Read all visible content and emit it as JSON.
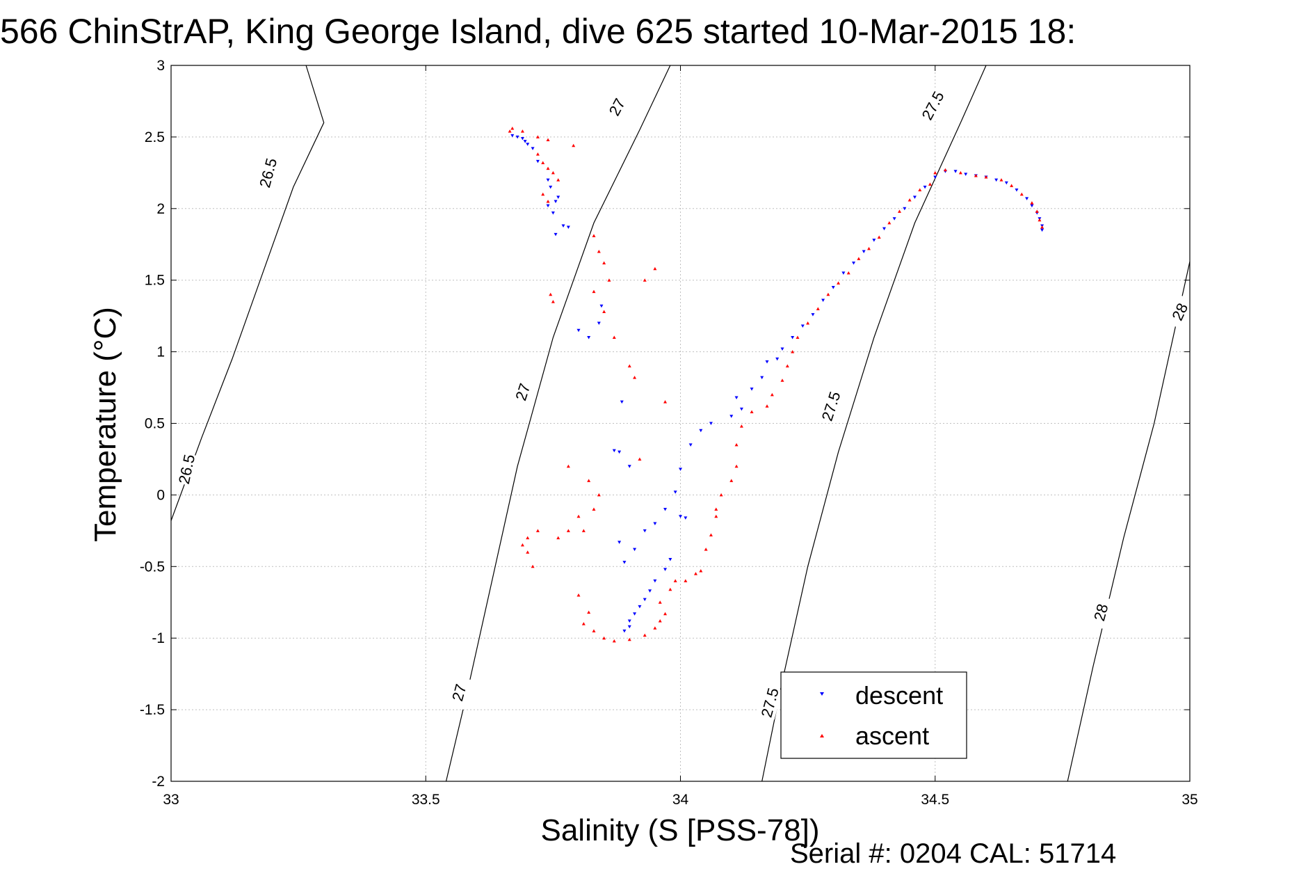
{
  "title": "566 ChinStrAP, King George Island, dive 625 started 10-Mar-2015 18:",
  "footer": "Serial #: 0204  CAL: 51714",
  "colors": {
    "descent": "#0000ff",
    "ascent": "#ff0000",
    "grid": "#bfbfbf",
    "contour": "#000000"
  },
  "chart_data": {
    "type": "scatter",
    "xlabel": "Salinity (S [PSS-78])",
    "ylabel": "Temperature (°C)",
    "xlim": [
      33,
      35
    ],
    "ylim": [
      -2,
      3
    ],
    "xticks": [
      33,
      33.5,
      34,
      34.5,
      35
    ],
    "xtick_labels": [
      "33",
      "33.5",
      "34",
      "34.5",
      "35"
    ],
    "yticks": [
      -2,
      -1.5,
      -1,
      -0.5,
      0,
      0.5,
      1,
      1.5,
      2,
      2.5,
      3
    ],
    "ytick_labels": [
      "-2",
      "-1.5",
      "-1",
      "-0.5",
      "0",
      "0.5",
      "1",
      "1.5",
      "2",
      "2.5",
      "3"
    ],
    "grid": true,
    "legend": {
      "placement": "bottom-right",
      "entries": [
        "descent",
        "ascent"
      ]
    },
    "contours": [
      {
        "label": "26.5",
        "points": [
          [
            33.0,
            -0.18
          ],
          [
            33.06,
            0.4
          ],
          [
            33.12,
            0.95
          ],
          [
            33.18,
            1.55
          ],
          [
            33.24,
            2.15
          ],
          [
            33.3,
            2.6
          ],
          [
            33.265,
            3.0
          ]
        ]
      },
      {
        "label": "27",
        "points": [
          [
            33.54,
            -2.0
          ],
          [
            33.58,
            -1.4
          ],
          [
            33.63,
            -0.6
          ],
          [
            33.68,
            0.2
          ],
          [
            33.75,
            1.1
          ],
          [
            33.83,
            1.9
          ],
          [
            33.92,
            2.55
          ],
          [
            33.98,
            3.0
          ]
        ]
      },
      {
        "label": "27.5",
        "points": [
          [
            34.16,
            -2.0
          ],
          [
            34.2,
            -1.3
          ],
          [
            34.25,
            -0.5
          ],
          [
            34.31,
            0.3
          ],
          [
            34.38,
            1.1
          ],
          [
            34.46,
            1.9
          ],
          [
            34.55,
            2.6
          ],
          [
            34.6,
            3.0
          ]
        ]
      },
      {
        "label": "28",
        "points": [
          [
            34.76,
            -2.0
          ],
          [
            34.81,
            -1.2
          ],
          [
            34.87,
            -0.3
          ],
          [
            34.93,
            0.5
          ],
          [
            35.0,
            1.63
          ]
        ]
      }
    ],
    "contour_labels": [
      {
        "text": "26.5",
        "at": [
          33.19,
          2.25
        ],
        "angle": -75
      },
      {
        "text": "26.5",
        "at": [
          33.03,
          0.18
        ],
        "angle": -78
      },
      {
        "text": "27",
        "at": [
          33.875,
          2.71
        ],
        "angle": -62
      },
      {
        "text": "27",
        "at": [
          33.69,
          0.72
        ],
        "angle": -72
      },
      {
        "text": "27",
        "at": [
          33.565,
          -1.38
        ],
        "angle": -75
      },
      {
        "text": "27.5",
        "at": [
          34.495,
          2.72
        ],
        "angle": -62
      },
      {
        "text": "27.5",
        "at": [
          34.295,
          0.62
        ],
        "angle": -72
      },
      {
        "text": "27.5",
        "at": [
          34.175,
          -1.45
        ],
        "angle": -75
      },
      {
        "text": "28",
        "at": [
          34.98,
          1.28
        ],
        "angle": -65
      },
      {
        "text": "28",
        "at": [
          34.825,
          -0.82
        ],
        "angle": -75
      }
    ],
    "series": [
      {
        "name": "descent",
        "marker": "triangle-down",
        "points": [
          [
            33.67,
            2.51
          ],
          [
            33.68,
            2.5
          ],
          [
            33.69,
            2.49
          ],
          [
            33.695,
            2.47
          ],
          [
            33.7,
            2.45
          ],
          [
            33.71,
            2.42
          ],
          [
            33.72,
            2.33
          ],
          [
            33.74,
            2.2
          ],
          [
            33.745,
            2.15
          ],
          [
            33.76,
            2.08
          ],
          [
            33.755,
            2.05
          ],
          [
            33.74,
            2.02
          ],
          [
            33.75,
            1.97
          ],
          [
            33.755,
            1.82
          ],
          [
            33.77,
            1.88
          ],
          [
            33.78,
            1.87
          ],
          [
            33.8,
            1.15
          ],
          [
            33.82,
            1.1
          ],
          [
            33.84,
            1.2
          ],
          [
            33.845,
            1.32
          ],
          [
            33.885,
            0.65
          ],
          [
            33.88,
            0.3
          ],
          [
            33.87,
            0.31
          ],
          [
            33.9,
            0.2
          ],
          [
            33.88,
            -0.33
          ],
          [
            33.89,
            -0.47
          ],
          [
            33.91,
            -0.38
          ],
          [
            33.93,
            -0.25
          ],
          [
            33.95,
            -0.2
          ],
          [
            33.97,
            -0.1
          ],
          [
            33.99,
            0.02
          ],
          [
            34.0,
            0.18
          ],
          [
            34.02,
            0.35
          ],
          [
            34.04,
            0.45
          ],
          [
            34.06,
            0.5
          ],
          [
            34.1,
            0.55
          ],
          [
            34.12,
            0.6
          ],
          [
            34.11,
            0.68
          ],
          [
            34.14,
            0.74
          ],
          [
            34.16,
            0.82
          ],
          [
            34.17,
            0.93
          ],
          [
            34.19,
            0.95
          ],
          [
            34.2,
            1.02
          ],
          [
            34.22,
            1.1
          ],
          [
            34.24,
            1.18
          ],
          [
            34.26,
            1.26
          ],
          [
            34.28,
            1.36
          ],
          [
            34.3,
            1.45
          ],
          [
            34.32,
            1.55
          ],
          [
            34.34,
            1.62
          ],
          [
            34.36,
            1.7
          ],
          [
            34.38,
            1.78
          ],
          [
            34.4,
            1.86
          ],
          [
            34.42,
            1.93
          ],
          [
            34.44,
            2.0
          ],
          [
            34.46,
            2.08
          ],
          [
            34.48,
            2.15
          ],
          [
            34.5,
            2.22
          ],
          [
            34.52,
            2.26
          ],
          [
            34.54,
            2.26
          ],
          [
            34.56,
            2.24
          ],
          [
            34.58,
            2.23
          ],
          [
            34.6,
            2.22
          ],
          [
            34.62,
            2.2
          ],
          [
            34.64,
            2.18
          ],
          [
            34.66,
            2.13
          ],
          [
            34.68,
            2.07
          ],
          [
            34.69,
            2.02
          ],
          [
            34.7,
            1.97
          ],
          [
            34.705,
            1.93
          ],
          [
            34.71,
            1.88
          ],
          [
            34.71,
            1.85
          ],
          [
            33.89,
            -0.95
          ],
          [
            33.9,
            -0.92
          ],
          [
            33.9,
            -0.88
          ],
          [
            33.91,
            -0.83
          ],
          [
            33.92,
            -0.78
          ],
          [
            33.93,
            -0.73
          ],
          [
            33.94,
            -0.67
          ],
          [
            33.95,
            -0.6
          ],
          [
            33.97,
            -0.52
          ],
          [
            33.98,
            -0.45
          ],
          [
            34.0,
            -0.15
          ],
          [
            34.01,
            -0.16
          ]
        ]
      },
      {
        "name": "ascent",
        "marker": "triangle-up",
        "points": [
          [
            33.665,
            2.54
          ],
          [
            33.67,
            2.56
          ],
          [
            33.69,
            2.54
          ],
          [
            33.72,
            2.5
          ],
          [
            33.74,
            2.48
          ],
          [
            33.72,
            2.38
          ],
          [
            33.73,
            2.32
          ],
          [
            33.74,
            2.28
          ],
          [
            33.75,
            2.25
          ],
          [
            33.76,
            2.2
          ],
          [
            33.73,
            2.1
          ],
          [
            33.74,
            2.05
          ],
          [
            33.79,
            2.44
          ],
          [
            33.745,
            1.4
          ],
          [
            33.75,
            1.35
          ],
          [
            33.83,
            1.81
          ],
          [
            33.84,
            1.7
          ],
          [
            33.85,
            1.62
          ],
          [
            33.95,
            1.58
          ],
          [
            33.93,
            1.5
          ],
          [
            33.86,
            1.5
          ],
          [
            33.83,
            1.42
          ],
          [
            33.85,
            1.28
          ],
          [
            33.87,
            1.1
          ],
          [
            33.9,
            0.9
          ],
          [
            33.91,
            0.82
          ],
          [
            33.97,
            0.65
          ],
          [
            33.92,
            0.25
          ],
          [
            33.78,
            0.2
          ],
          [
            33.82,
            0.1
          ],
          [
            33.84,
            0.0
          ],
          [
            33.83,
            -0.1
          ],
          [
            33.8,
            -0.15
          ],
          [
            33.81,
            -0.25
          ],
          [
            33.78,
            -0.25
          ],
          [
            33.76,
            -0.3
          ],
          [
            33.72,
            -0.25
          ],
          [
            33.7,
            -0.3
          ],
          [
            33.69,
            -0.35
          ],
          [
            33.7,
            -0.4
          ],
          [
            33.71,
            -0.5
          ],
          [
            33.8,
            -0.7
          ],
          [
            33.82,
            -0.82
          ],
          [
            33.81,
            -0.9
          ],
          [
            33.83,
            -0.95
          ],
          [
            33.85,
            -1.0
          ],
          [
            33.87,
            -1.02
          ],
          [
            33.9,
            -1.01
          ],
          [
            33.93,
            -0.98
          ],
          [
            33.95,
            -0.93
          ],
          [
            33.96,
            -0.88
          ],
          [
            33.97,
            -0.83
          ],
          [
            33.96,
            -0.75
          ],
          [
            33.98,
            -0.66
          ],
          [
            33.99,
            -0.6
          ],
          [
            34.01,
            -0.6
          ],
          [
            34.03,
            -0.55
          ],
          [
            34.04,
            -0.53
          ],
          [
            34.05,
            -0.38
          ],
          [
            34.06,
            -0.28
          ],
          [
            34.07,
            -0.15
          ],
          [
            34.07,
            -0.1
          ],
          [
            34.08,
            0.0
          ],
          [
            34.1,
            0.1
          ],
          [
            34.11,
            0.2
          ],
          [
            34.11,
            0.35
          ],
          [
            34.12,
            0.48
          ],
          [
            34.14,
            0.58
          ],
          [
            34.17,
            0.62
          ],
          [
            34.18,
            0.7
          ],
          [
            34.2,
            0.8
          ],
          [
            34.21,
            0.9
          ],
          [
            34.22,
            1.0
          ],
          [
            34.23,
            1.1
          ],
          [
            34.25,
            1.2
          ],
          [
            34.27,
            1.3
          ],
          [
            34.29,
            1.4
          ],
          [
            34.31,
            1.48
          ],
          [
            34.33,
            1.55
          ],
          [
            34.35,
            1.65
          ],
          [
            34.37,
            1.72
          ],
          [
            34.39,
            1.8
          ],
          [
            34.41,
            1.9
          ],
          [
            34.43,
            1.98
          ],
          [
            34.45,
            2.06
          ],
          [
            34.47,
            2.13
          ],
          [
            34.49,
            2.17
          ],
          [
            34.5,
            2.25
          ],
          [
            34.52,
            2.27
          ],
          [
            34.55,
            2.25
          ],
          [
            34.58,
            2.23
          ],
          [
            34.6,
            2.22
          ],
          [
            34.63,
            2.2
          ],
          [
            34.65,
            2.16
          ],
          [
            34.67,
            2.1
          ],
          [
            34.69,
            2.04
          ],
          [
            34.7,
            1.98
          ],
          [
            34.705,
            1.92
          ],
          [
            34.71,
            1.87
          ]
        ]
      }
    ]
  }
}
